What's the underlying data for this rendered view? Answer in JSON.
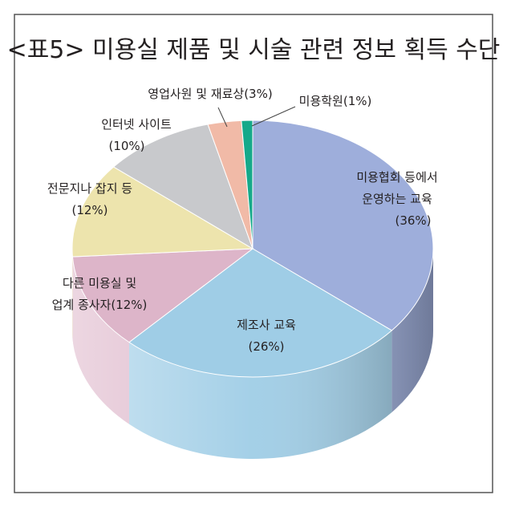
{
  "chart_data": {
    "type": "pie3d",
    "title": "<표5> 미용실 제품 및 시술 관련 정보 획득 수단",
    "categories": [
      [
        "미용협회 등에서",
        "운영하는 교육"
      ],
      [
        "제조사 교육"
      ],
      [
        "다른 미용실 및",
        "업계 종사자"
      ],
      [
        "전문지나 잡지 등"
      ],
      [
        "인터넷 사이트"
      ],
      [
        "영업사원 및 재료상"
      ],
      [
        "미용학원"
      ]
    ],
    "values": [
      36,
      26,
      12,
      12,
      10,
      3,
      1
    ],
    "value_labels": [
      "(36%)",
      "(26%)",
      "(12%)",
      "(12%)",
      "(10%)",
      "(3%)",
      "(1%)"
    ],
    "colors": [
      "#9eaedb",
      "#9fcde6",
      "#ddb5c9",
      "#ede4ad",
      "#c8c9cc",
      "#f1baa7",
      "#16a98a"
    ]
  }
}
